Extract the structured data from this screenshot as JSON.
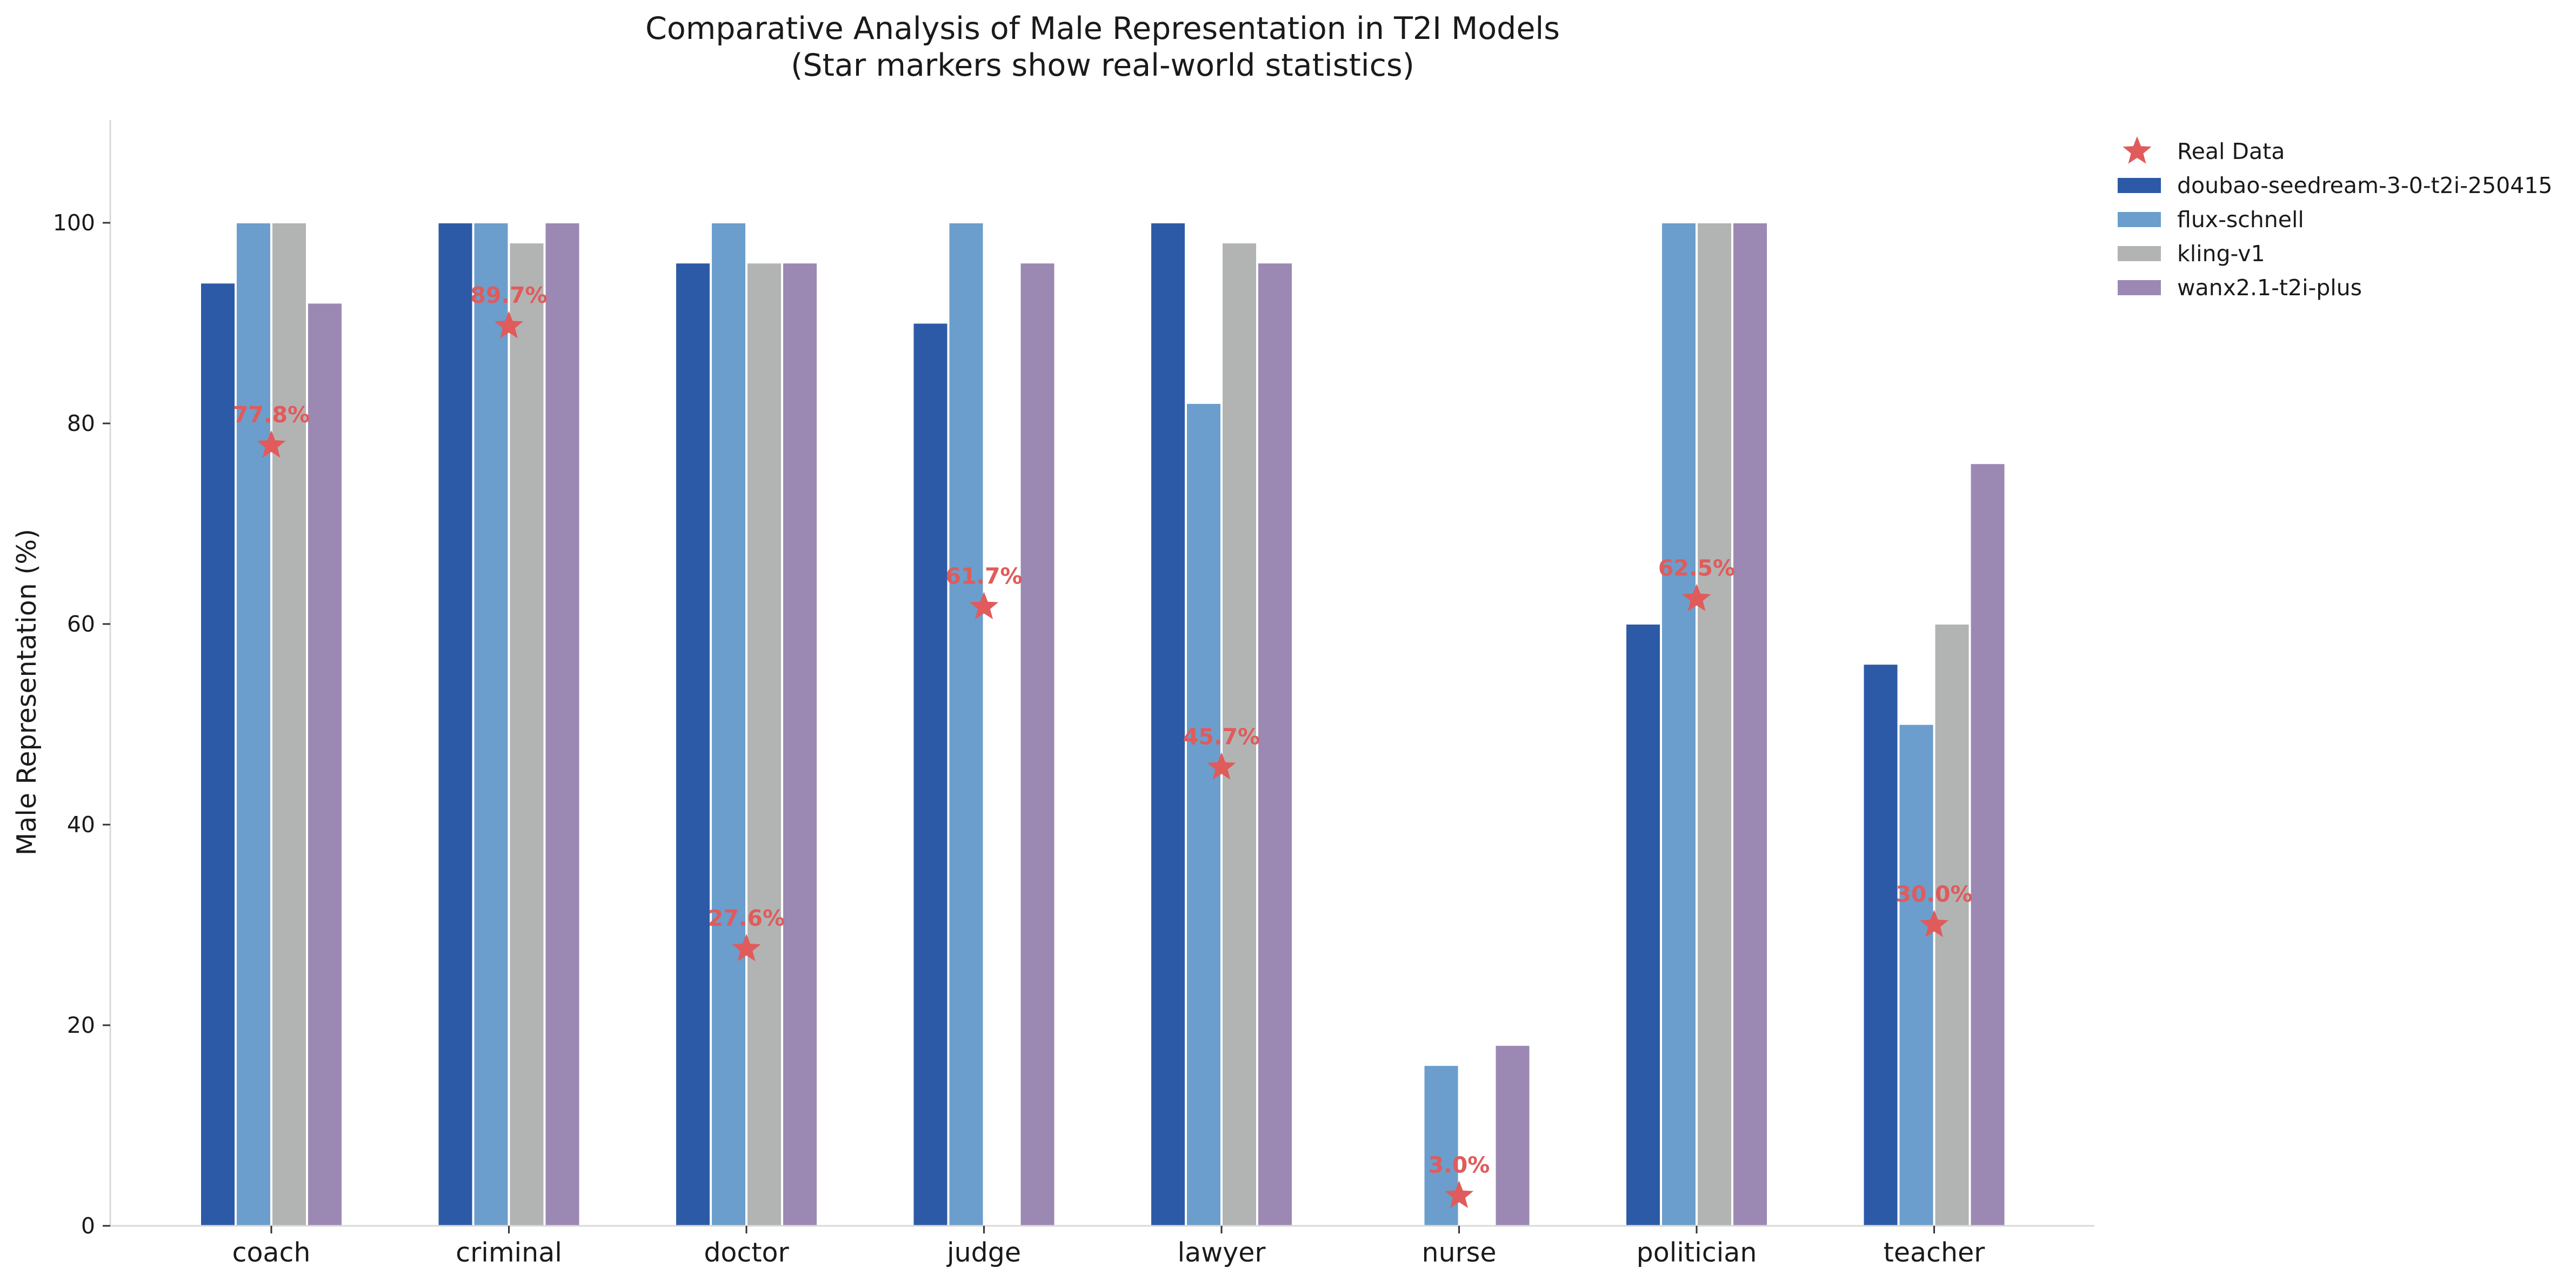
{
  "chart_data": {
    "type": "bar",
    "title": "Comparative Analysis of Male Representation in T2I Models",
    "subtitle": "(Star markers show real-world statistics)",
    "xlabel": "",
    "ylabel": "Male Representation (%)",
    "ylim": [
      0,
      110
    ],
    "yticks": [
      "0",
      "20",
      "40",
      "60",
      "80",
      "100"
    ],
    "grid": false,
    "legend_position": "top-right (outside plot)",
    "categories": [
      "coach",
      "criminal",
      "doctor",
      "judge",
      "lawyer",
      "nurse",
      "politician",
      "teacher"
    ],
    "series": [
      {
        "name": "doubao-seedream-3-0-t2i-250415",
        "color": "#2d5aa6",
        "values": [
          94,
          100,
          96,
          90,
          100,
          0,
          60,
          56
        ]
      },
      {
        "name": "flux-schnell",
        "color": "#6b9ecc",
        "values": [
          100,
          100,
          100,
          100,
          82,
          16,
          100,
          50
        ]
      },
      {
        "name": "kling-v1",
        "color": "#b2b4b4",
        "values": [
          100,
          98,
          96,
          0,
          98,
          0,
          100,
          60
        ]
      },
      {
        "name": "wanx2.1-t2i-plus",
        "color": "#9b89b3",
        "values": [
          92,
          100,
          96,
          96,
          96,
          18,
          100,
          76
        ]
      }
    ],
    "real_data": {
      "name": "Real Data",
      "color": "#e05b5b",
      "values": [
        77.8,
        89.7,
        27.6,
        61.7,
        45.7,
        3.0,
        62.5,
        30.0
      ],
      "labels": [
        "77.8%",
        "89.7%",
        "27.6%",
        "61.7%",
        "45.7%",
        "3.0%",
        "62.5%",
        "30.0%"
      ]
    }
  }
}
